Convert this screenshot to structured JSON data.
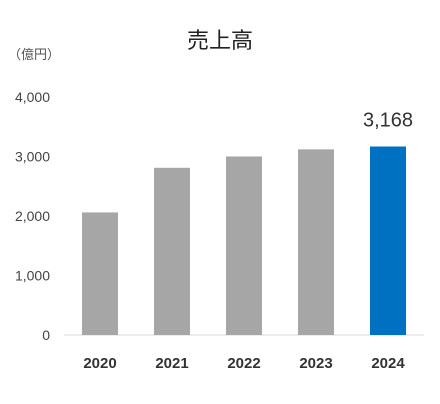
{
  "chart_data": {
    "type": "bar",
    "title": "売上高",
    "unit_label": "（億円）",
    "categories": [
      "2020",
      "2021",
      "2022",
      "2023",
      "2024"
    ],
    "values": [
      2060,
      2810,
      3000,
      3120,
      3168
    ],
    "ylim": [
      0,
      4000
    ],
    "yticks": [
      "0",
      "1,000",
      "2,000",
      "3,000",
      "4,000"
    ],
    "ytick_values": [
      0,
      1000,
      2000,
      3000,
      4000
    ],
    "grid": false,
    "legend": "none",
    "data_labels": [
      {
        "category": "2024",
        "text": "3,168"
      }
    ],
    "colors": {
      "default_bar": "#a6a6a6",
      "highlight_bar": "#0070c0",
      "highlight_category": "2024"
    }
  }
}
